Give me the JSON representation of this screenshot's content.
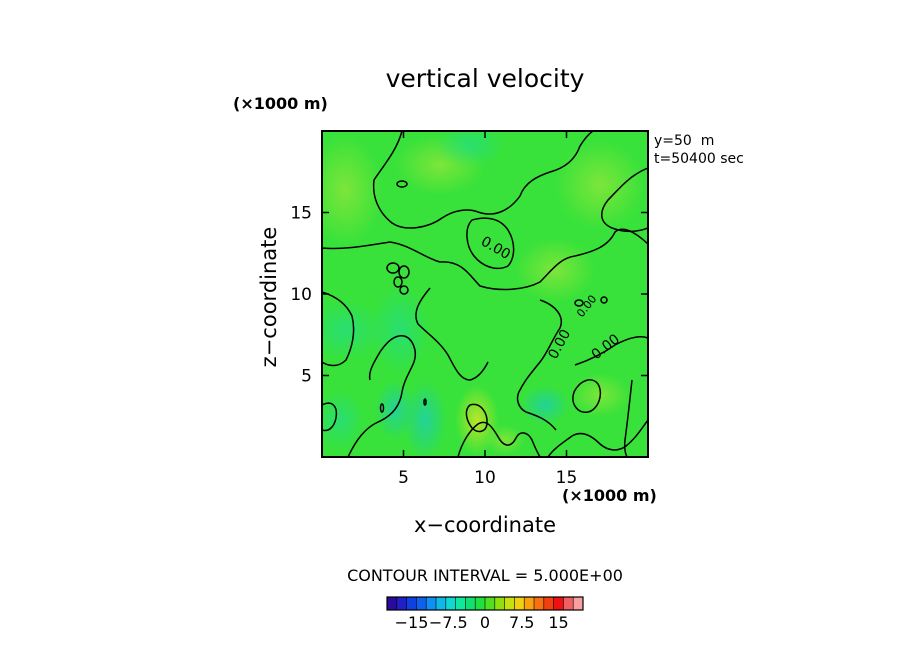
{
  "chart_data": {
    "type": "heatmap",
    "title": "vertical velocity",
    "xlabel": "x−coordinate",
    "ylabel": "z−coordinate",
    "x_unit": "(×1000 m)",
    "z_unit": "(×1000 m)",
    "xlim": [
      0,
      20
    ],
    "ylim": [
      0,
      20
    ],
    "x_ticks": [
      5,
      10,
      15
    ],
    "y_ticks": [
      5,
      10,
      15
    ],
    "x_tick_labels": [
      "5",
      "10",
      "15"
    ],
    "y_tick_labels": [
      "5",
      "10",
      "15"
    ],
    "annotations": [
      "y=50  m",
      "t=50400 sec"
    ],
    "contour_labels": [
      "0.00",
      "0.00",
      "0.00",
      "0.00"
    ],
    "contour_interval_text": "CONTOUR INTERVAL = 5.000E+00",
    "colorbar": {
      "min": -20,
      "max": 20,
      "tick_labels": [
        "−15",
        "−7.5",
        "0",
        "7.5",
        "15"
      ],
      "tick_values": [
        -15,
        -7.5,
        0,
        7.5,
        15
      ],
      "colors": [
        "#2a0a9a",
        "#2020c8",
        "#1040e0",
        "#1060f0",
        "#1090f0",
        "#10b8e8",
        "#10d8d0",
        "#10e8a0",
        "#10e070",
        "#20e040",
        "#50e020",
        "#90e010",
        "#c8e010",
        "#f0d010",
        "#f8a010",
        "#f87010",
        "#f04010",
        "#f01010",
        "#f06060",
        "#f8a0a0"
      ]
    }
  }
}
